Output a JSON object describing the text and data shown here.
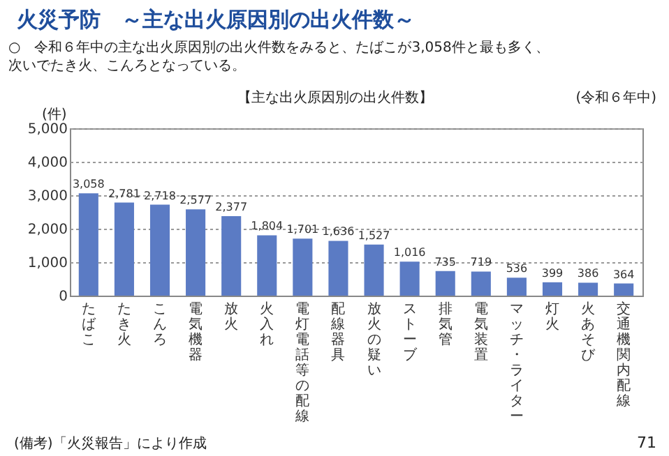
{
  "chart_data": {
    "type": "bar",
    "title": "火災予防　～主な出火原因別の出火件数～",
    "subtitle": "○　令和６年中の主な出火原因別の出火件数をみると、たばこが3,058件と最も多く、次いでたき火、こんろとなっている。",
    "ylabel": "(件)",
    "annotations": [
      "【主な出火原因別の出火件数】",
      "(令和６年中)",
      "(備考)「火災報告」により作成",
      "71"
    ],
    "categories": [
      "たばこ",
      "たき火",
      "こんろ",
      "電気機器",
      "放火",
      "火入れ",
      "電灯電話等の配線",
      "配線器具",
      "放火の疑い",
      "ストーブ",
      "排気管",
      "電気装置",
      "マッチ・ライター",
      "灯火",
      "火あそび",
      "交通機関内配線"
    ],
    "values": [
      3058,
      2781,
      2718,
      2577,
      2377,
      1804,
      1701,
      1636,
      1527,
      1016,
      735,
      719,
      536,
      399,
      386,
      364
    ],
    "color": "#5b7bc4",
    "value_labels": [
      "3,058",
      "2,781",
      "2,718",
      "2,577",
      "2,377",
      "1,804",
      "1,701",
      "1,636",
      "1,527",
      "1,016",
      "735",
      "719",
      "536",
      "399",
      "386",
      "364"
    ],
    "ylim": [
      0,
      5000
    ],
    "yticks": [
      0,
      {
        "value": 1000,
        "label": "1,000"
      },
      {
        "value": 2000,
        "label": "2,000"
      },
      {
        "value": 3000,
        "label": "3,000"
      },
      {
        "value": 4000,
        "label": "4,000"
      },
      {
        "value": 5000,
        "label": "5,000"
      }
    ],
    "grid": "y"
  }
}
